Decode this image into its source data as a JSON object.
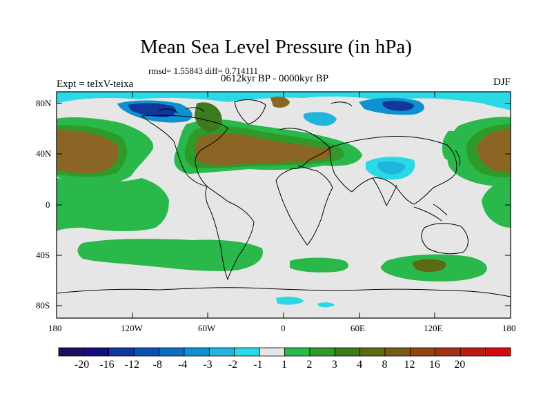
{
  "title": "Mean Sea Level Pressure (in hPa)",
  "stats": "rmsd= 1.55843 diff= 0.714111",
  "subtitle": "0612kyr BP - 0000kyr BP",
  "experiment": "Expt = teIxV-teixa",
  "season": "DJF",
  "lat_labels": [
    "80N",
    "40N",
    "0",
    "40S",
    "80S"
  ],
  "lon_labels": [
    "180",
    "120W",
    "60W",
    "0",
    "60E",
    "120E",
    "180"
  ],
  "colorbar": {
    "colors": [
      "#1c0f5e",
      "#160d7c",
      "#10389a",
      "#0a4fb3",
      "#0c6dc4",
      "#0f91cf",
      "#1fb5dc",
      "#2ad8e6",
      "#e6e6e6",
      "#28b94a",
      "#2e9a2a",
      "#3c7a1e",
      "#5c6a14",
      "#7a5a12",
      "#8e4414",
      "#a23214",
      "#b81c10",
      "#d40c0c"
    ],
    "labels": [
      "-20",
      "-16",
      "-12",
      "-8",
      "-4",
      "-3",
      "-2",
      "-1",
      "1",
      "2",
      "3",
      "4",
      "8",
      "12",
      "16",
      "20"
    ]
  }
}
